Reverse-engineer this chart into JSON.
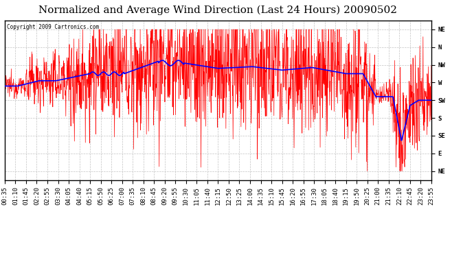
{
  "title": "Normalized and Average Wind Direction (Last 24 Hours) 20090502",
  "copyright": "Copyright 2009 Cartronics.com",
  "bg_color": "#ffffff",
  "plot_bg_color": "#ffffff",
  "y_labels": [
    "NE",
    "N",
    "NW",
    "W",
    "SW",
    "S",
    "SE",
    "E",
    "NE"
  ],
  "y_values": [
    9,
    8,
    7,
    6,
    5,
    4,
    3,
    2,
    1
  ],
  "y_min": 0.5,
  "y_max": 9.5,
  "red_color": "#ff0000",
  "blue_color": "#0000ff",
  "grid_color": "#bbbbbb",
  "title_fontsize": 11,
  "tick_fontsize": 6.5,
  "tick_step_min": 35
}
